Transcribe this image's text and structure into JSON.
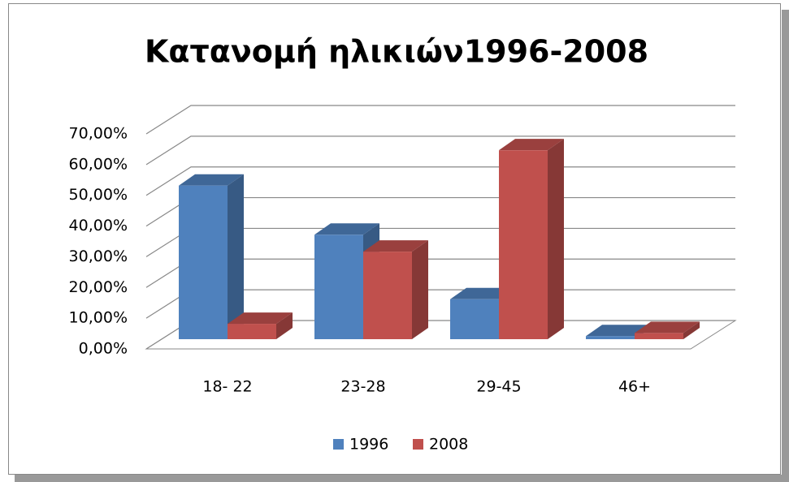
{
  "chart_data": {
    "type": "bar3d",
    "title": "Κατανομή ηλικιών1996-2008",
    "categories": [
      "18- 22",
      "23-28",
      "29-45",
      "46+"
    ],
    "series": [
      {
        "name": "1996",
        "color": "#4f81bd",
        "values": [
          50,
          34,
          13,
          1
        ]
      },
      {
        "name": "2008",
        "color": "#c0504d",
        "values": [
          5,
          28.5,
          61.5,
          2
        ]
      }
    ],
    "ylim": [
      0,
      70
    ],
    "yticks": [
      {
        "value": 0,
        "label": "0,00%"
      },
      {
        "value": 10,
        "label": "10,00%"
      },
      {
        "value": 20,
        "label": "20,00%"
      },
      {
        "value": 30,
        "label": "30,00%"
      },
      {
        "value": 40,
        "label": "40,00%"
      },
      {
        "value": 50,
        "label": "50,00%"
      },
      {
        "value": 60,
        "label": "60,00%"
      },
      {
        "value": 70,
        "label": "70,00%"
      }
    ],
    "grid": true,
    "legend": "bottom"
  }
}
